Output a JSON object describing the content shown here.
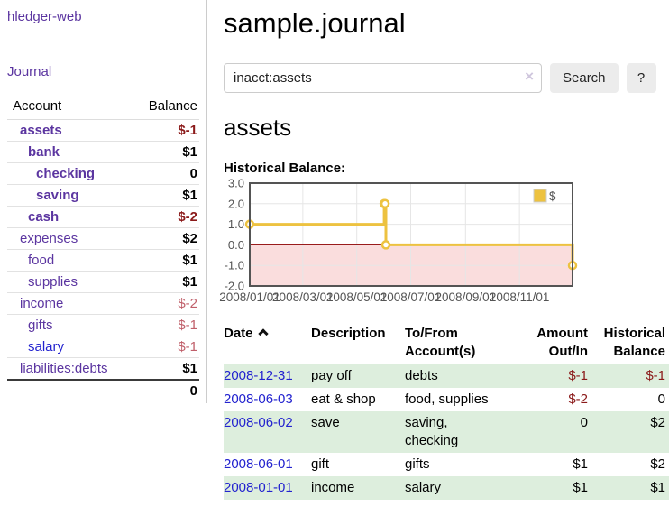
{
  "app": {
    "brand": "hledger-web"
  },
  "sidebar": {
    "nav_journal": "Journal",
    "accounts": {
      "headers": {
        "account": "Account",
        "balance": "Balance"
      },
      "rows": [
        {
          "name": "assets",
          "balance": "$-1",
          "depth": 0,
          "selected": true
        },
        {
          "name": "bank",
          "balance": "$1",
          "depth": 1,
          "selected": true
        },
        {
          "name": "checking",
          "balance": "0",
          "depth": 2,
          "selected": true
        },
        {
          "name": "saving",
          "balance": "$1",
          "depth": 2,
          "selected": true
        },
        {
          "name": "cash",
          "balance": "$-2",
          "depth": 1,
          "selected": true
        },
        {
          "name": "expenses",
          "balance": "$2",
          "depth": 0,
          "selected": false
        },
        {
          "name": "food",
          "balance": "$1",
          "depth": 1,
          "selected": false
        },
        {
          "name": "supplies",
          "balance": "$1",
          "depth": 1,
          "selected": false
        },
        {
          "name": "income",
          "balance": "$-2",
          "depth": 0,
          "selected": false
        },
        {
          "name": "gifts",
          "balance": "$-1",
          "depth": 1,
          "selected": false
        },
        {
          "name": "salary",
          "balance": "$-1",
          "depth": 1,
          "selected": false,
          "link_blue": true
        },
        {
          "name": "liabilities:debts",
          "balance": "$1",
          "depth": 0,
          "selected": false
        }
      ],
      "total": "0"
    }
  },
  "main": {
    "title": "sample.journal",
    "search": {
      "value": "inacct:assets",
      "clear_icon": "×",
      "button": "Search",
      "help": "?"
    },
    "account_heading": "assets",
    "chart_label": "Historical Balance:"
  },
  "chart_data": {
    "type": "line",
    "steps": true,
    "title": "Historical Balance",
    "series": [
      {
        "name": "$",
        "color": "#EDC240",
        "points": [
          {
            "date": "2008-01-01",
            "value": 1
          },
          {
            "date": "2008-06-01",
            "value": 2
          },
          {
            "date": "2008-06-02",
            "value": 2
          },
          {
            "date": "2008-06-03",
            "value": 0
          },
          {
            "date": "2008-12-31",
            "value": -1
          }
        ]
      }
    ],
    "ylim": [
      -2.0,
      3.0
    ],
    "yticks": [
      "3.0",
      "2.0",
      "1.0",
      "0.0",
      "-1.0",
      "-2.0"
    ],
    "xticks": [
      "2008/01/01",
      "2008/03/01",
      "2008/05/01",
      "2008/07/01",
      "2008/09/01",
      "2008/11/01"
    ],
    "xrange": [
      "2008-01-01",
      "2008-12-31"
    ],
    "legend_position": "top-right",
    "grid": true,
    "colors": {
      "negative_fill": "#fadddd",
      "zero_line": "#8b0000",
      "gridline": "#e6e6e6",
      "plot_border": "#545454",
      "tick_text": "#545454"
    }
  },
  "register": {
    "headers": {
      "date": "Date",
      "description": "Description",
      "accounts": "To/From\nAccount(s)",
      "amount": "Amount\nOut/In",
      "balance": "Historical\nBalance"
    },
    "rows": [
      {
        "date": "2008-12-31",
        "description": "pay off",
        "accounts": "debts",
        "amount": "$-1",
        "balance": "$-1"
      },
      {
        "date": "2008-06-03",
        "description": "eat & shop",
        "accounts": "food, supplies",
        "amount": "$-2",
        "balance": "0"
      },
      {
        "date": "2008-06-02",
        "description": "save",
        "accounts": "saving,\nchecking",
        "amount": "0",
        "balance": "$2"
      },
      {
        "date": "2008-06-01",
        "description": "gift",
        "accounts": "gifts",
        "amount": "$1",
        "balance": "$2"
      },
      {
        "date": "2008-01-01",
        "description": "income",
        "accounts": "salary",
        "amount": "$1",
        "balance": "$1"
      }
    ]
  }
}
